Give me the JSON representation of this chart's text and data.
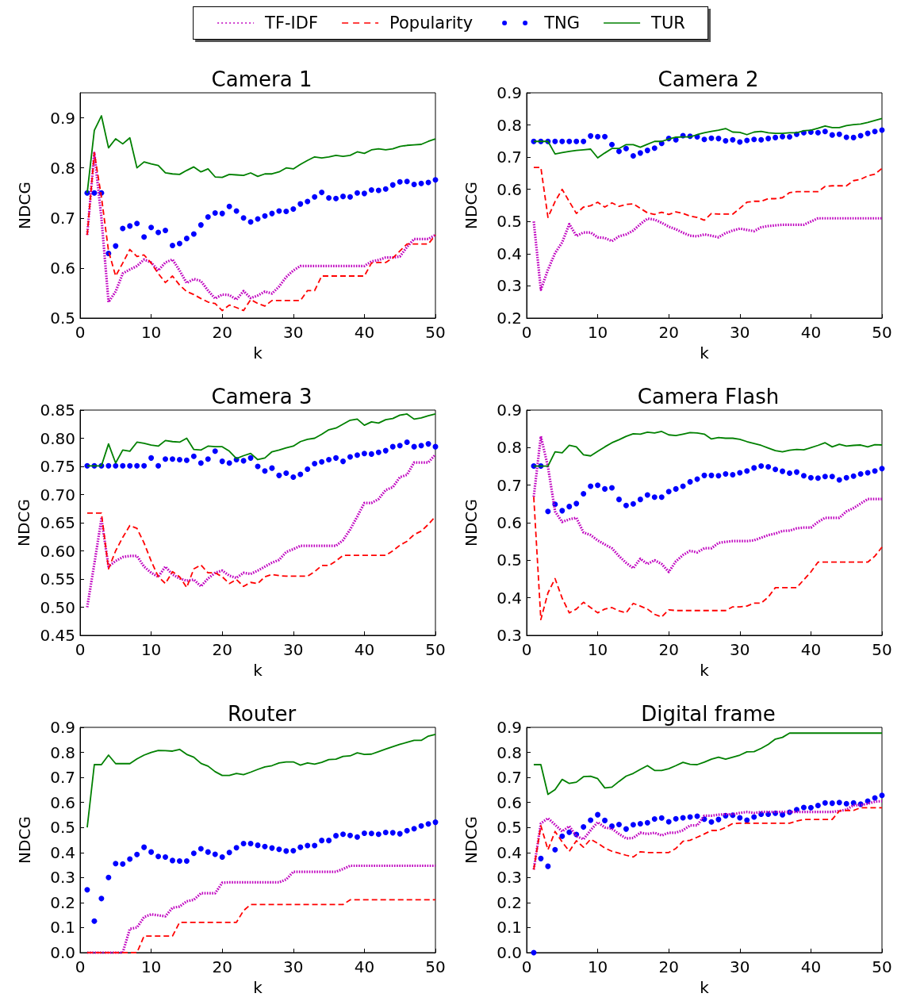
{
  "chart_data": [
    {
      "type": "line",
      "title": "Camera 1",
      "xlabel": "k",
      "ylabel": "NDCG",
      "legend": "top",
      "x": [
        1,
        2,
        3,
        4,
        5,
        6,
        7,
        8,
        9,
        10,
        11,
        12,
        13,
        14,
        15,
        16,
        17,
        18,
        19,
        20,
        21,
        22,
        23,
        24,
        25,
        26,
        27,
        28,
        29,
        30,
        31,
        32,
        33,
        34,
        35,
        36,
        37,
        38,
        39,
        40,
        41,
        42,
        43,
        44,
        45,
        46,
        47,
        48,
        49,
        50
      ],
      "xlim": [
        0,
        50
      ],
      "xticks": [
        0,
        10,
        20,
        30,
        40,
        50
      ],
      "ylim": [
        0.5,
        0.95
      ],
      "yticks": [
        0.5,
        0.6,
        0.7,
        0.8,
        0.9
      ],
      "series": [
        {
          "name": "TF-IDF",
          "color": "#bf00bf",
          "line_style": "dotted",
          "values": [
            0.666,
            0.83,
            0.7,
            0.532,
            0.553,
            0.589,
            0.597,
            0.604,
            0.617,
            0.611,
            0.595,
            0.611,
            0.617,
            0.595,
            0.57,
            0.578,
            0.574,
            0.555,
            0.539,
            0.547,
            0.546,
            0.537,
            0.554,
            0.54,
            0.545,
            0.553,
            0.549,
            0.563,
            0.582,
            0.595,
            0.604,
            0.604,
            0.604,
            0.604,
            0.604,
            0.604,
            0.604,
            0.604,
            0.604,
            0.604,
            0.613,
            0.616,
            0.621,
            0.621,
            0.623,
            0.642,
            0.658,
            0.658,
            0.658,
            0.666
          ]
        },
        {
          "name": "Popularity",
          "color": "#ff0000",
          "line_style": "dashed",
          "values": [
            0.666,
            0.83,
            0.742,
            0.634,
            0.584,
            0.61,
            0.637,
            0.623,
            0.626,
            0.61,
            0.589,
            0.571,
            0.584,
            0.566,
            0.553,
            0.547,
            0.539,
            0.532,
            0.529,
            0.515,
            0.526,
            0.521,
            0.515,
            0.537,
            0.529,
            0.524,
            0.535,
            0.535,
            0.535,
            0.535,
            0.535,
            0.555,
            0.555,
            0.584,
            0.584,
            0.584,
            0.584,
            0.584,
            0.584,
            0.584,
            0.61,
            0.611,
            0.611,
            0.62,
            0.634,
            0.648,
            0.648,
            0.648,
            0.648,
            0.666
          ]
        },
        {
          "name": "TNG",
          "color": "#0000ff",
          "type": "scatter",
          "marker": "circle",
          "values": [
            0.75,
            0.75,
            0.75,
            0.629,
            0.644,
            0.679,
            0.684,
            0.689,
            0.662,
            0.681,
            0.671,
            0.675,
            0.645,
            0.649,
            0.659,
            0.668,
            0.686,
            0.702,
            0.71,
            0.709,
            0.723,
            0.714,
            0.7,
            0.692,
            0.698,
            0.704,
            0.709,
            0.714,
            0.713,
            0.718,
            0.728,
            0.733,
            0.742,
            0.751,
            0.74,
            0.739,
            0.743,
            0.742,
            0.75,
            0.749,
            0.756,
            0.755,
            0.758,
            0.766,
            0.772,
            0.773,
            0.767,
            0.769,
            0.771,
            0.776
          ]
        },
        {
          "name": "TUR",
          "color": "#008000",
          "line_style": "solid",
          "values": [
            0.75,
            0.875,
            0.904,
            0.84,
            0.858,
            0.848,
            0.86,
            0.8,
            0.812,
            0.808,
            0.805,
            0.79,
            0.788,
            0.787,
            0.795,
            0.802,
            0.792,
            0.798,
            0.782,
            0.781,
            0.787,
            0.786,
            0.785,
            0.79,
            0.783,
            0.788,
            0.788,
            0.792,
            0.8,
            0.798,
            0.807,
            0.815,
            0.822,
            0.82,
            0.822,
            0.825,
            0.823,
            0.825,
            0.832,
            0.829,
            0.836,
            0.838,
            0.836,
            0.838,
            0.843,
            0.845,
            0.846,
            0.847,
            0.853,
            0.858
          ]
        }
      ]
    },
    {
      "type": "line",
      "title": "Camera 2",
      "xlabel": "k",
      "ylabel": "NDCG",
      "x": [
        1,
        2,
        3,
        4,
        5,
        6,
        7,
        8,
        9,
        10,
        11,
        12,
        13,
        14,
        15,
        16,
        17,
        18,
        19,
        20,
        21,
        22,
        23,
        24,
        25,
        26,
        27,
        28,
        29,
        30,
        31,
        32,
        33,
        34,
        35,
        36,
        37,
        38,
        39,
        40,
        41,
        42,
        43,
        44,
        45,
        46,
        47,
        48,
        49,
        50
      ],
      "xlim": [
        0,
        50
      ],
      "xticks": [
        0,
        10,
        20,
        30,
        40,
        50
      ],
      "ylim": [
        0.2,
        0.9
      ],
      "yticks": [
        0.2,
        0.3,
        0.4,
        0.5,
        0.6,
        0.7,
        0.8,
        0.9
      ],
      "series": [
        {
          "color": "#bf00bf",
          "line_style": "dotted",
          "values": [
            0.5,
            0.288,
            0.35,
            0.402,
            0.435,
            0.492,
            0.455,
            0.466,
            0.466,
            0.451,
            0.449,
            0.439,
            0.454,
            0.46,
            0.472,
            0.492,
            0.509,
            0.506,
            0.496,
            0.484,
            0.476,
            0.465,
            0.456,
            0.454,
            0.46,
            0.456,
            0.451,
            0.464,
            0.472,
            0.478,
            0.474,
            0.47,
            0.482,
            0.486,
            0.488,
            0.49,
            0.49,
            0.49,
            0.49,
            0.5,
            0.51,
            0.51,
            0.51,
            0.51,
            0.51,
            0.51,
            0.51,
            0.51,
            0.51,
            0.51
          ]
        },
        {
          "color": "#ff0000",
          "line_style": "dashed",
          "values": [
            0.668,
            0.668,
            0.513,
            0.562,
            0.6,
            0.562,
            0.525,
            0.545,
            0.549,
            0.56,
            0.545,
            0.558,
            0.547,
            0.553,
            0.555,
            0.541,
            0.527,
            0.522,
            0.529,
            0.522,
            0.53,
            0.525,
            0.517,
            0.513,
            0.504,
            0.525,
            0.523,
            0.523,
            0.523,
            0.541,
            0.56,
            0.563,
            0.563,
            0.571,
            0.571,
            0.574,
            0.59,
            0.593,
            0.593,
            0.593,
            0.593,
            0.609,
            0.611,
            0.611,
            0.611,
            0.627,
            0.631,
            0.642,
            0.647,
            0.665
          ]
        },
        {
          "color": "#0000ff",
          "type": "scatter",
          "marker": "circle",
          "values": [
            0.749,
            0.749,
            0.749,
            0.749,
            0.749,
            0.749,
            0.749,
            0.749,
            0.766,
            0.764,
            0.764,
            0.739,
            0.718,
            0.727,
            0.704,
            0.713,
            0.721,
            0.728,
            0.743,
            0.758,
            0.754,
            0.767,
            0.765,
            0.763,
            0.755,
            0.759,
            0.758,
            0.751,
            0.754,
            0.747,
            0.752,
            0.755,
            0.754,
            0.758,
            0.761,
            0.764,
            0.763,
            0.771,
            0.776,
            0.778,
            0.776,
            0.78,
            0.769,
            0.771,
            0.762,
            0.761,
            0.767,
            0.774,
            0.78,
            0.784
          ]
        },
        {
          "color": "#008000",
          "line_style": "solid",
          "values": [
            0.749,
            0.749,
            0.749,
            0.71,
            0.714,
            0.718,
            0.721,
            0.723,
            0.725,
            0.698,
            0.713,
            0.727,
            0.727,
            0.739,
            0.739,
            0.731,
            0.74,
            0.749,
            0.749,
            0.756,
            0.762,
            0.763,
            0.763,
            0.77,
            0.776,
            0.78,
            0.784,
            0.789,
            0.778,
            0.777,
            0.77,
            0.778,
            0.78,
            0.776,
            0.774,
            0.774,
            0.776,
            0.776,
            0.782,
            0.784,
            0.79,
            0.797,
            0.792,
            0.792,
            0.798,
            0.801,
            0.803,
            0.808,
            0.814,
            0.82
          ]
        }
      ]
    },
    {
      "type": "line",
      "title": "Camera 3",
      "xlabel": "k",
      "ylabel": "NDCG",
      "x": [
        1,
        2,
        3,
        4,
        5,
        6,
        7,
        8,
        9,
        10,
        11,
        12,
        13,
        14,
        15,
        16,
        17,
        18,
        19,
        20,
        21,
        22,
        23,
        24,
        25,
        26,
        27,
        28,
        29,
        30,
        31,
        32,
        33,
        34,
        35,
        36,
        37,
        38,
        39,
        40,
        41,
        42,
        43,
        44,
        45,
        46,
        47,
        48,
        49,
        50
      ],
      "xlim": [
        0,
        50
      ],
      "xticks": [
        0,
        10,
        20,
        30,
        40,
        50
      ],
      "ylim": [
        0.45,
        0.85
      ],
      "yticks": [
        {
          "value": 0.45,
          "label": "0.45"
        },
        {
          "value": 0.5,
          "label": "0.50"
        },
        {
          "value": 0.55,
          "label": "0.55"
        },
        {
          "value": 0.6,
          "label": "0.60"
        },
        {
          "value": 0.65,
          "label": "0.65"
        },
        {
          "value": 0.7,
          "label": "0.70"
        },
        {
          "value": 0.75,
          "label": "0.75"
        },
        {
          "value": 0.8,
          "label": "0.80"
        },
        {
          "value": 0.85,
          "label": "0.85"
        }
      ],
      "series": [
        {
          "color": "#bf00bf",
          "line_style": "dotted",
          "values": [
            0.5,
            0.577,
            0.657,
            0.572,
            0.582,
            0.589,
            0.591,
            0.591,
            0.572,
            0.561,
            0.554,
            0.572,
            0.558,
            0.551,
            0.547,
            0.549,
            0.537,
            0.551,
            0.561,
            0.565,
            0.556,
            0.552,
            0.561,
            0.559,
            0.565,
            0.572,
            0.579,
            0.584,
            0.598,
            0.603,
            0.609,
            0.609,
            0.609,
            0.609,
            0.609,
            0.609,
            0.619,
            0.638,
            0.661,
            0.685,
            0.685,
            0.692,
            0.708,
            0.713,
            0.731,
            0.735,
            0.757,
            0.757,
            0.757,
            0.771
          ]
        },
        {
          "color": "#ff0000",
          "line_style": "dashed",
          "values": [
            0.667,
            0.667,
            0.667,
            0.568,
            0.6,
            0.624,
            0.645,
            0.64,
            0.614,
            0.582,
            0.554,
            0.542,
            0.563,
            0.554,
            0.535,
            0.568,
            0.575,
            0.561,
            0.561,
            0.554,
            0.542,
            0.549,
            0.537,
            0.544,
            0.542,
            0.554,
            0.558,
            0.556,
            0.555,
            0.555,
            0.555,
            0.555,
            0.563,
            0.574,
            0.574,
            0.582,
            0.592,
            0.592,
            0.592,
            0.592,
            0.592,
            0.592,
            0.592,
            0.6,
            0.61,
            0.617,
            0.629,
            0.635,
            0.647,
            0.661
          ]
        },
        {
          "color": "#0000ff",
          "type": "scatter",
          "marker": "circle",
          "values": [
            0.751,
            0.751,
            0.751,
            0.751,
            0.751,
            0.751,
            0.751,
            0.751,
            0.751,
            0.765,
            0.751,
            0.763,
            0.763,
            0.762,
            0.761,
            0.768,
            0.756,
            0.763,
            0.777,
            0.759,
            0.756,
            0.762,
            0.76,
            0.765,
            0.75,
            0.742,
            0.747,
            0.734,
            0.738,
            0.731,
            0.736,
            0.745,
            0.755,
            0.758,
            0.762,
            0.765,
            0.759,
            0.767,
            0.77,
            0.773,
            0.772,
            0.775,
            0.778,
            0.785,
            0.787,
            0.793,
            0.785,
            0.787,
            0.79,
            0.785
          ]
        },
        {
          "color": "#008000",
          "line_style": "solid",
          "values": [
            0.751,
            0.751,
            0.751,
            0.79,
            0.756,
            0.779,
            0.777,
            0.793,
            0.791,
            0.788,
            0.786,
            0.796,
            0.794,
            0.793,
            0.8,
            0.78,
            0.779,
            0.786,
            0.785,
            0.785,
            0.777,
            0.764,
            0.769,
            0.773,
            0.762,
            0.765,
            0.776,
            0.779,
            0.783,
            0.786,
            0.794,
            0.798,
            0.8,
            0.807,
            0.815,
            0.818,
            0.825,
            0.832,
            0.834,
            0.823,
            0.829,
            0.827,
            0.833,
            0.835,
            0.841,
            0.843,
            0.834,
            0.836,
            0.84,
            0.843
          ]
        }
      ]
    },
    {
      "type": "line",
      "title": "Camera Flash",
      "xlabel": "k",
      "ylabel": "NDCG",
      "x": [
        1,
        2,
        3,
        4,
        5,
        6,
        7,
        8,
        9,
        10,
        11,
        12,
        13,
        14,
        15,
        16,
        17,
        18,
        19,
        20,
        21,
        22,
        23,
        24,
        25,
        26,
        27,
        28,
        29,
        30,
        31,
        32,
        33,
        34,
        35,
        36,
        37,
        38,
        39,
        40,
        41,
        42,
        43,
        44,
        45,
        46,
        47,
        48,
        49,
        50
      ],
      "xlim": [
        0,
        50
      ],
      "xticks": [
        0,
        10,
        20,
        30,
        40,
        50
      ],
      "ylim": [
        0.3,
        0.9
      ],
      "yticks": [
        0.3,
        0.4,
        0.5,
        0.6,
        0.7,
        0.8,
        0.9
      ],
      "series": [
        {
          "color": "#bf00bf",
          "line_style": "dotted",
          "values": [
            0.669,
            0.83,
            0.749,
            0.63,
            0.602,
            0.609,
            0.613,
            0.574,
            0.567,
            0.553,
            0.542,
            0.532,
            0.511,
            0.493,
            0.479,
            0.504,
            0.49,
            0.5,
            0.49,
            0.469,
            0.497,
            0.514,
            0.525,
            0.521,
            0.532,
            0.532,
            0.546,
            0.549,
            0.551,
            0.551,
            0.551,
            0.553,
            0.56,
            0.567,
            0.571,
            0.578,
            0.579,
            0.585,
            0.587,
            0.587,
            0.602,
            0.613,
            0.613,
            0.613,
            0.63,
            0.639,
            0.651,
            0.663,
            0.663,
            0.663
          ]
        },
        {
          "color": "#ff0000",
          "line_style": "dashed",
          "values": [
            0.669,
            0.342,
            0.413,
            0.451,
            0.399,
            0.36,
            0.37,
            0.388,
            0.374,
            0.36,
            0.37,
            0.374,
            0.365,
            0.36,
            0.385,
            0.378,
            0.37,
            0.356,
            0.349,
            0.368,
            0.366,
            0.366,
            0.366,
            0.366,
            0.366,
            0.366,
            0.366,
            0.366,
            0.376,
            0.376,
            0.378,
            0.386,
            0.386,
            0.402,
            0.427,
            0.427,
            0.427,
            0.427,
            0.448,
            0.469,
            0.495,
            0.495,
            0.495,
            0.495,
            0.495,
            0.495,
            0.495,
            0.495,
            0.511,
            0.535
          ]
        },
        {
          "color": "#0000ff",
          "type": "scatter",
          "marker": "circle",
          "values": [
            0.751,
            0.751,
            0.63,
            0.649,
            0.632,
            0.643,
            0.651,
            0.677,
            0.697,
            0.7,
            0.69,
            0.693,
            0.662,
            0.646,
            0.65,
            0.662,
            0.674,
            0.668,
            0.668,
            0.683,
            0.69,
            0.697,
            0.709,
            0.716,
            0.726,
            0.726,
            0.725,
            0.73,
            0.728,
            0.733,
            0.738,
            0.746,
            0.751,
            0.749,
            0.742,
            0.737,
            0.732,
            0.735,
            0.725,
            0.72,
            0.719,
            0.723,
            0.723,
            0.714,
            0.72,
            0.724,
            0.73,
            0.733,
            0.738,
            0.744
          ]
        },
        {
          "color": "#008000",
          "line_style": "solid",
          "values": [
            0.751,
            0.751,
            0.751,
            0.789,
            0.786,
            0.806,
            0.802,
            0.781,
            0.778,
            0.79,
            0.802,
            0.813,
            0.821,
            0.83,
            0.837,
            0.836,
            0.841,
            0.839,
            0.843,
            0.834,
            0.832,
            0.836,
            0.84,
            0.839,
            0.836,
            0.823,
            0.827,
            0.825,
            0.825,
            0.822,
            0.816,
            0.811,
            0.806,
            0.799,
            0.792,
            0.789,
            0.793,
            0.795,
            0.794,
            0.8,
            0.806,
            0.813,
            0.802,
            0.809,
            0.804,
            0.806,
            0.807,
            0.802,
            0.808,
            0.807
          ]
        }
      ]
    },
    {
      "type": "line",
      "title": "Router",
      "xlabel": "k",
      "ylabel": "NDCG",
      "x": [
        1,
        2,
        3,
        4,
        5,
        6,
        7,
        8,
        9,
        10,
        11,
        12,
        13,
        14,
        15,
        16,
        17,
        18,
        19,
        20,
        21,
        22,
        23,
        24,
        25,
        26,
        27,
        28,
        29,
        30,
        31,
        32,
        33,
        34,
        35,
        36,
        37,
        38,
        39,
        40,
        41,
        42,
        43,
        44,
        45,
        46,
        47,
        48,
        49,
        50
      ],
      "xlim": [
        0,
        50
      ],
      "xticks": [
        0,
        10,
        20,
        30,
        40,
        50
      ],
      "ylim": [
        0,
        0.9
      ],
      "yticks": [
        {
          "value": 0,
          "label": "0.0"
        },
        0.1,
        0.2,
        0.3,
        0.4,
        0.5,
        0.6,
        0.7,
        0.8,
        0.9
      ],
      "series": [
        {
          "color": "#bf00bf",
          "line_style": "dotted",
          "values": [
            0,
            0,
            0,
            0,
            0,
            0,
            0.095,
            0.1,
            0.142,
            0.153,
            0.149,
            0.145,
            0.179,
            0.184,
            0.205,
            0.211,
            0.237,
            0.237,
            0.237,
            0.279,
            0.281,
            0.281,
            0.281,
            0.281,
            0.281,
            0.281,
            0.281,
            0.281,
            0.292,
            0.323,
            0.323,
            0.323,
            0.323,
            0.323,
            0.323,
            0.323,
            0.334,
            0.347,
            0.347,
            0.347,
            0.347,
            0.347,
            0.347,
            0.347,
            0.347,
            0.347,
            0.347,
            0.347,
            0.347,
            0.347
          ]
        },
        {
          "color": "#ff0000",
          "line_style": "dashed",
          "values": [
            0,
            0,
            0,
            0,
            0,
            0,
            0,
            0,
            0.066,
            0.066,
            0.066,
            0.066,
            0.066,
            0.121,
            0.121,
            0.121,
            0.121,
            0.121,
            0.121,
            0.121,
            0.121,
            0.121,
            0.168,
            0.192,
            0.192,
            0.192,
            0.192,
            0.192,
            0.192,
            0.192,
            0.192,
            0.192,
            0.192,
            0.192,
            0.192,
            0.192,
            0.192,
            0.211,
            0.211,
            0.211,
            0.211,
            0.211,
            0.211,
            0.211,
            0.211,
            0.211,
            0.211,
            0.211,
            0.211,
            0.211
          ]
        },
        {
          "color": "#0000ff",
          "type": "scatter",
          "marker": "circle",
          "values": [
            0.251,
            0.126,
            0.216,
            0.3,
            0.356,
            0.354,
            0.374,
            0.392,
            0.421,
            0.402,
            0.384,
            0.382,
            0.368,
            0.366,
            0.366,
            0.397,
            0.415,
            0.402,
            0.393,
            0.382,
            0.4,
            0.419,
            0.436,
            0.436,
            0.429,
            0.424,
            0.418,
            0.413,
            0.406,
            0.407,
            0.421,
            0.428,
            0.428,
            0.448,
            0.448,
            0.467,
            0.473,
            0.468,
            0.462,
            0.477,
            0.476,
            0.473,
            0.48,
            0.479,
            0.475,
            0.487,
            0.495,
            0.506,
            0.514,
            0.521
          ]
        },
        {
          "color": "#008000",
          "line_style": "solid",
          "values": [
            0.5,
            0.751,
            0.751,
            0.789,
            0.755,
            0.755,
            0.755,
            0.774,
            0.789,
            0.8,
            0.808,
            0.807,
            0.805,
            0.812,
            0.792,
            0.781,
            0.756,
            0.745,
            0.723,
            0.708,
            0.708,
            0.716,
            0.711,
            0.721,
            0.732,
            0.742,
            0.747,
            0.758,
            0.762,
            0.762,
            0.749,
            0.758,
            0.753,
            0.76,
            0.771,
            0.773,
            0.784,
            0.786,
            0.798,
            0.792,
            0.793,
            0.803,
            0.813,
            0.823,
            0.832,
            0.84,
            0.848,
            0.848,
            0.865,
            0.872
          ]
        }
      ]
    },
    {
      "type": "line",
      "title": "Digital frame",
      "xlabel": "k",
      "ylabel": "NDCG",
      "x": [
        1,
        2,
        3,
        4,
        5,
        6,
        7,
        8,
        9,
        10,
        11,
        12,
        13,
        14,
        15,
        16,
        17,
        18,
        19,
        20,
        21,
        22,
        23,
        24,
        25,
        26,
        27,
        28,
        29,
        30,
        31,
        32,
        33,
        34,
        35,
        36,
        37,
        38,
        39,
        40,
        41,
        42,
        43,
        44,
        45,
        46,
        47,
        48,
        49,
        50
      ],
      "xlim": [
        0,
        50
      ],
      "xticks": [
        0,
        10,
        20,
        30,
        40,
        50
      ],
      "ylim": [
        0,
        0.9
      ],
      "yticks": [
        {
          "value": 0,
          "label": "0.0"
        },
        0.1,
        0.2,
        0.3,
        0.4,
        0.5,
        0.6,
        0.7,
        0.8,
        0.9
      ],
      "series": [
        {
          "color": "#bf00bf",
          "line_style": "dotted",
          "values": [
            0.332,
            0.516,
            0.537,
            0.511,
            0.484,
            0.505,
            0.465,
            0.453,
            0.489,
            0.521,
            0.5,
            0.495,
            0.474,
            0.456,
            0.458,
            0.479,
            0.474,
            0.479,
            0.468,
            0.479,
            0.479,
            0.489,
            0.508,
            0.508,
            0.547,
            0.547,
            0.551,
            0.553,
            0.553,
            0.558,
            0.562,
            0.558,
            0.562,
            0.562,
            0.562,
            0.562,
            0.562,
            0.562,
            0.562,
            0.562,
            0.562,
            0.562,
            0.562,
            0.566,
            0.571,
            0.589,
            0.589,
            0.595,
            0.603,
            0.605
          ]
        },
        {
          "color": "#ff0000",
          "line_style": "dashed",
          "values": [
            0.332,
            0.507,
            0.411,
            0.484,
            0.442,
            0.405,
            0.447,
            0.421,
            0.453,
            0.437,
            0.418,
            0.405,
            0.397,
            0.389,
            0.382,
            0.403,
            0.4,
            0.4,
            0.4,
            0.4,
            0.416,
            0.445,
            0.449,
            0.461,
            0.474,
            0.488,
            0.488,
            0.5,
            0.516,
            0.517,
            0.517,
            0.517,
            0.517,
            0.517,
            0.517,
            0.517,
            0.517,
            0.526,
            0.532,
            0.532,
            0.532,
            0.532,
            0.532,
            0.566,
            0.568,
            0.568,
            0.579,
            0.579,
            0.579,
            0.579
          ]
        },
        {
          "color": "#0000ff",
          "type": "scatter",
          "marker": "circle",
          "values": [
            0.0,
            0.376,
            0.345,
            0.411,
            0.465,
            0.481,
            0.472,
            0.502,
            0.529,
            0.551,
            0.528,
            0.505,
            0.512,
            0.494,
            0.511,
            0.515,
            0.519,
            0.534,
            0.538,
            0.523,
            0.535,
            0.539,
            0.542,
            0.545,
            0.533,
            0.522,
            0.532,
            0.547,
            0.549,
            0.539,
            0.529,
            0.542,
            0.553,
            0.553,
            0.557,
            0.551,
            0.561,
            0.571,
            0.58,
            0.579,
            0.588,
            0.598,
            0.597,
            0.6,
            0.595,
            0.598,
            0.593,
            0.605,
            0.618,
            0.628
          ]
        },
        {
          "color": "#008000",
          "line_style": "solid",
          "values": [
            0.751,
            0.751,
            0.632,
            0.651,
            0.692,
            0.676,
            0.681,
            0.703,
            0.705,
            0.695,
            0.658,
            0.661,
            0.684,
            0.705,
            0.716,
            0.732,
            0.747,
            0.728,
            0.728,
            0.735,
            0.747,
            0.76,
            0.752,
            0.751,
            0.761,
            0.773,
            0.781,
            0.773,
            0.781,
            0.789,
            0.802,
            0.803,
            0.816,
            0.832,
            0.853,
            0.86,
            0.877,
            0.877,
            0.877,
            0.877,
            0.877,
            0.877,
            0.877,
            0.877,
            0.877,
            0.877,
            0.877,
            0.877,
            0.877,
            0.877
          ]
        }
      ]
    }
  ]
}
